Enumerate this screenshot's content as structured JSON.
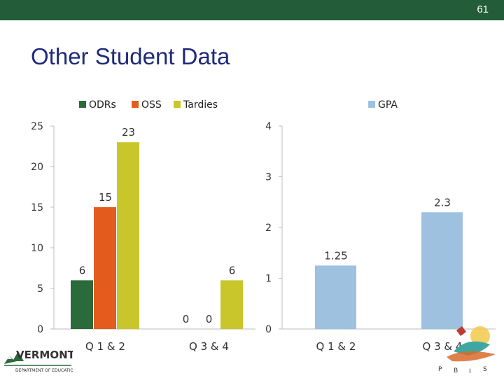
{
  "slide": {
    "number": "61",
    "title": "Other Student Data"
  },
  "chart_data": [
    {
      "type": "bar",
      "categories": [
        "Q 1 & 2",
        "Q 3 & 4"
      ],
      "series": [
        {
          "name": "ODRs",
          "values": [
            6,
            0
          ],
          "color": "#2a6a3b"
        },
        {
          "name": "OSS",
          "values": [
            15,
            0
          ],
          "color": "#e35c1e"
        },
        {
          "name": "Tardies",
          "values": [
            23,
            6
          ],
          "color": "#c8c62a"
        }
      ],
      "ylim": [
        0,
        25
      ],
      "yticks": [
        0,
        5,
        10,
        15,
        20,
        25
      ],
      "legend": "top",
      "grid": false,
      "data_labels": true
    },
    {
      "type": "bar",
      "categories": [
        "Q 1 & 2",
        "Q 3 & 4"
      ],
      "series": [
        {
          "name": "GPA",
          "values": [
            1.25,
            2.3
          ],
          "value_labels": [
            "1.25",
            "2.3"
          ],
          "color": "#9dc1df"
        }
      ],
      "ylim": [
        0,
        4
      ],
      "yticks": [
        0,
        1,
        2,
        3,
        4
      ],
      "legend": "top",
      "grid": false,
      "data_labels": true
    }
  ],
  "logos": {
    "vermont": {
      "name": "VERMONT",
      "subtitle": "DEPARTMENT OF EDUCATION"
    },
    "pbis": {
      "letters": "P B I S"
    }
  }
}
